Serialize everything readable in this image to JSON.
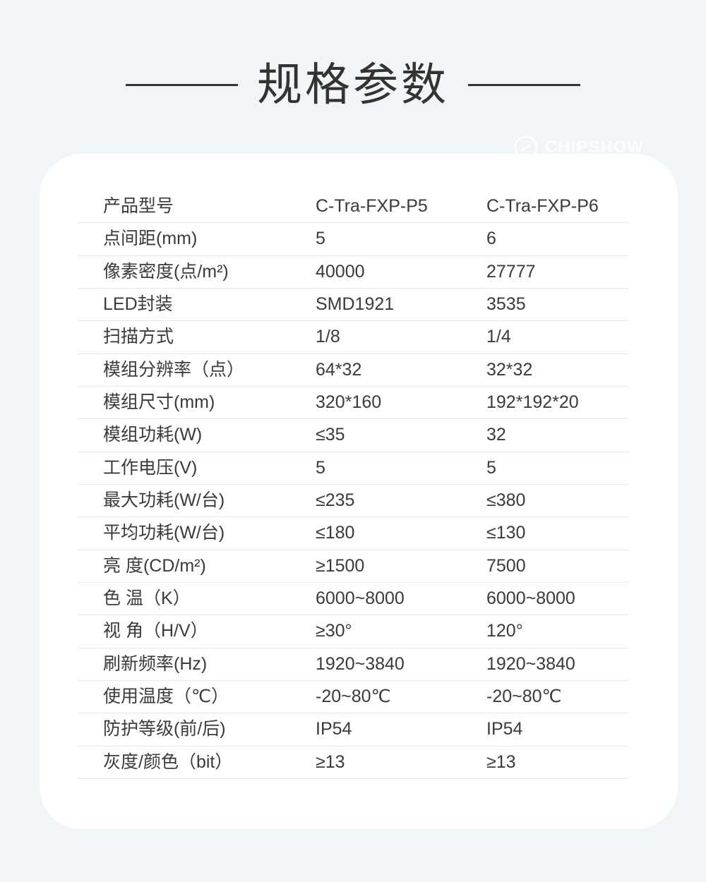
{
  "title": "规格参数",
  "watermark": {
    "logo": "circle-logo-icon",
    "text": "CHIPSHOW"
  },
  "colors": {
    "background": "#f0f6f7",
    "card": "#ffffff",
    "text": "#3a3a3a",
    "divider": "#e6e6e6",
    "title_line": "#333333"
  },
  "table": {
    "header": {
      "label": "产品型号",
      "col1": "C-Tra-FXP-P5",
      "col2": "C-Tra-FXP-P6"
    },
    "rows": [
      {
        "label": "点间距(mm)",
        "col1": "5",
        "col2": "6"
      },
      {
        "label": "像素密度(点/m²)",
        "col1": "40000",
        "col2": "27777"
      },
      {
        "label": "LED封装",
        "col1": "SMD1921",
        "col2": "3535"
      },
      {
        "label": "扫描方式",
        "col1": "1/8",
        "col2": "1/4"
      },
      {
        "label": "模组分辨率（点）",
        "col1": "64*32",
        "col2": "32*32"
      },
      {
        "label": "模组尺寸(mm)",
        "col1": "320*160",
        "col2": "192*192*20"
      },
      {
        "label": "模组功耗(W)",
        "col1": "≤35",
        "col2": "32"
      },
      {
        "label": "工作电压(V)",
        "col1": "5",
        "col2": "5"
      },
      {
        "label": "最大功耗(W/台)",
        "col1": "≤235",
        "col2": "≤380"
      },
      {
        "label": "平均功耗(W/台)",
        "col1": "≤180",
        "col2": "≤130"
      },
      {
        "label": "亮 度(CD/m²)",
        "col1": "≥1500",
        "col2": "7500"
      },
      {
        "label": "色 温（K）",
        "col1": "6000~8000",
        "col2": "6000~8000"
      },
      {
        "label": "视 角（H/V）",
        "col1": "≥30°",
        "col2": "120°"
      },
      {
        "label": "刷新频率(Hz)",
        "col1": "1920~3840",
        "col2": "1920~3840"
      },
      {
        "label": "使用温度（℃）",
        "col1": "-20~80℃",
        "col2": "-20~80℃"
      },
      {
        "label": "防护等级(前/后)",
        "col1": "IP54",
        "col2": "IP54"
      },
      {
        "label": "灰度/颜色（bit）",
        "col1": "≥13",
        "col2": "≥13"
      }
    ]
  }
}
